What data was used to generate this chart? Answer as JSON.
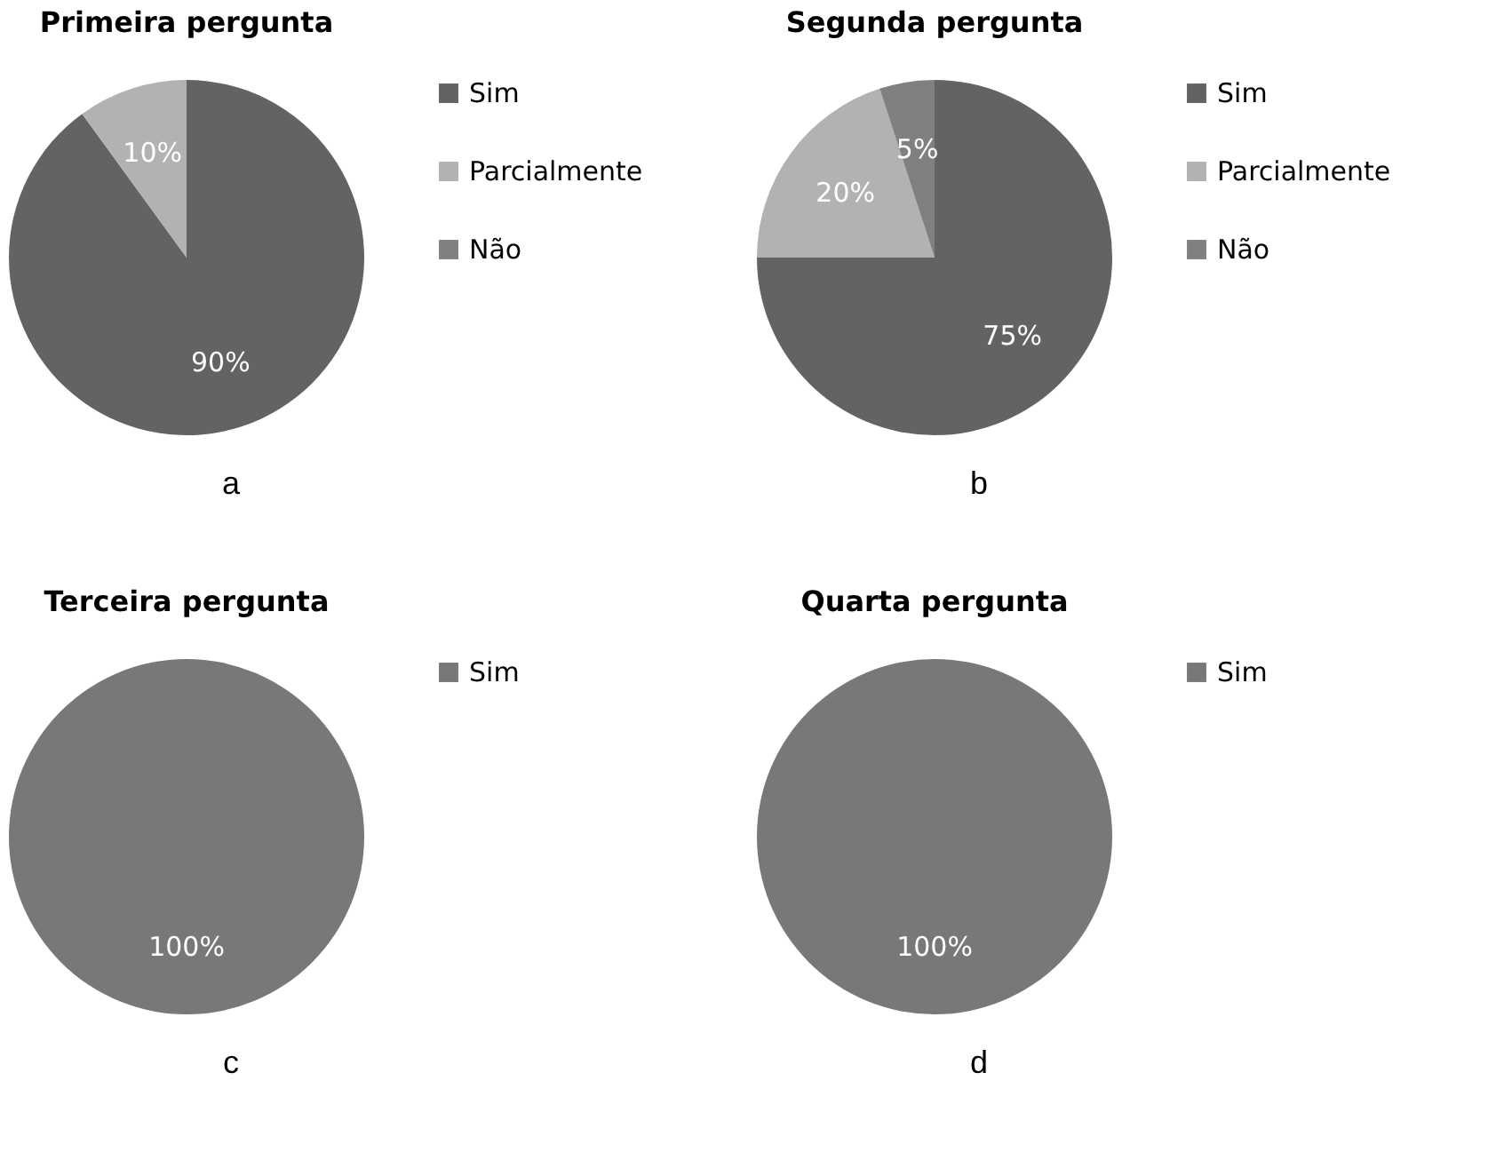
{
  "chart_data": [
    {
      "type": "pie",
      "title": "Primeira pergunta",
      "categories": [
        "Sim",
        "Parcialmente",
        "Não"
      ],
      "values": [
        90,
        10,
        0
      ],
      "colors": [
        "#636363",
        "#b2b2b2",
        "#808080"
      ],
      "value_labels": [
        "90%",
        "10%",
        null
      ],
      "legend": "right",
      "annotations": [
        "a"
      ]
    },
    {
      "type": "pie",
      "title": "Segunda pergunta",
      "categories": [
        "Sim",
        "Parcialmente",
        "Não"
      ],
      "values": [
        75,
        20,
        5
      ],
      "colors": [
        "#636363",
        "#b2b2b2",
        "#808080"
      ],
      "value_labels": [
        "75%",
        "20%",
        "5%"
      ],
      "legend": "right",
      "annotations": [
        "b"
      ]
    },
    {
      "type": "pie",
      "title": "Terceira pergunta",
      "categories": [
        "Sim"
      ],
      "values": [
        100
      ],
      "colors": [
        "#787878"
      ],
      "value_labels": [
        "100%"
      ],
      "legend": "right",
      "annotations": [
        "c"
      ]
    },
    {
      "type": "pie",
      "title": "Quarta pergunta",
      "categories": [
        "Sim"
      ],
      "values": [
        100
      ],
      "colors": [
        "#787878"
      ],
      "value_labels": [
        "100%"
      ],
      "legend": "right",
      "annotations": [
        "d"
      ]
    }
  ]
}
